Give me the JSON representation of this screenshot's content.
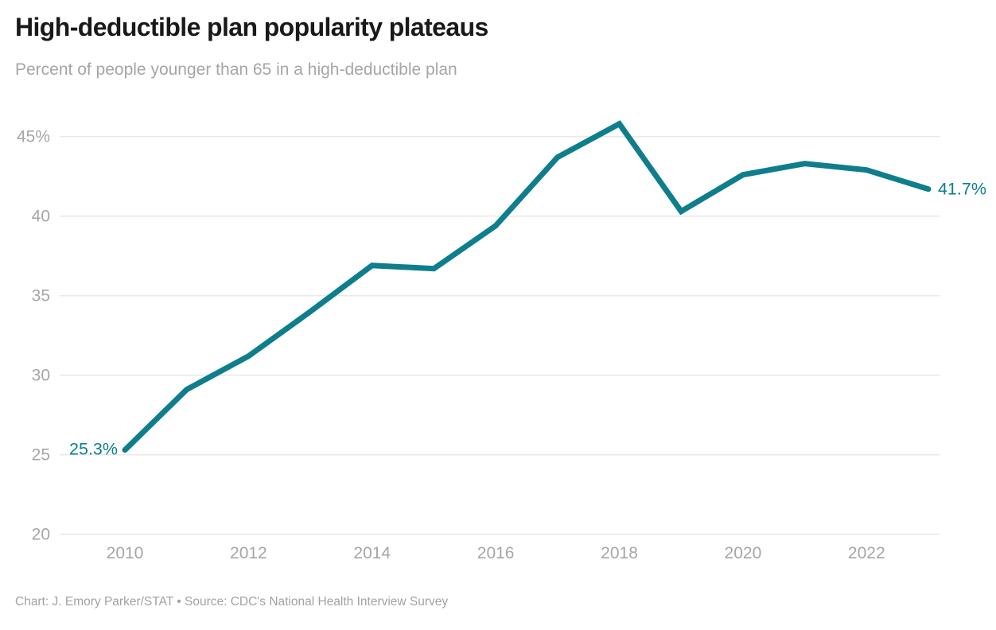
{
  "header": {
    "title": "High-deductible plan popularity plateaus",
    "subtitle": "Percent of people younger than 65 in a high-deductible plan"
  },
  "footer": {
    "credit": "Chart: J. Emory Parker/STAT • Source: CDC's National Health Interview Survey"
  },
  "colors": {
    "line": "#0e7e8c",
    "title": "#191919",
    "muted": "#a6a6a6",
    "grid": "#e9e9e9"
  },
  "chart_data": {
    "type": "line",
    "title": "High-deductible plan popularity plateaus",
    "subtitle": "Percent of people younger than 65 in a high-deductible plan",
    "x": [
      2010,
      2011,
      2012,
      2013,
      2014,
      2015,
      2016,
      2017,
      2018,
      2019,
      2020,
      2021,
      2022,
      2023
    ],
    "values": [
      25.3,
      29.1,
      31.2,
      34.0,
      36.9,
      36.7,
      39.4,
      43.7,
      45.8,
      40.3,
      42.6,
      43.3,
      42.9,
      41.7
    ],
    "xlabel": "",
    "ylabel": "",
    "xlim": [
      2010,
      2023
    ],
    "ylim": [
      20,
      46
    ],
    "yticks": [
      45,
      40,
      35,
      30,
      25,
      20
    ],
    "ytick_labels": [
      "45%",
      "40",
      "35",
      "30",
      "25",
      "20"
    ],
    "xticks": [
      2010,
      2012,
      2014,
      2016,
      2018,
      2020,
      2022
    ],
    "grid": "horizontal",
    "legend": "none",
    "first_point_label": "25.3%",
    "last_point_label": "41.7%"
  }
}
